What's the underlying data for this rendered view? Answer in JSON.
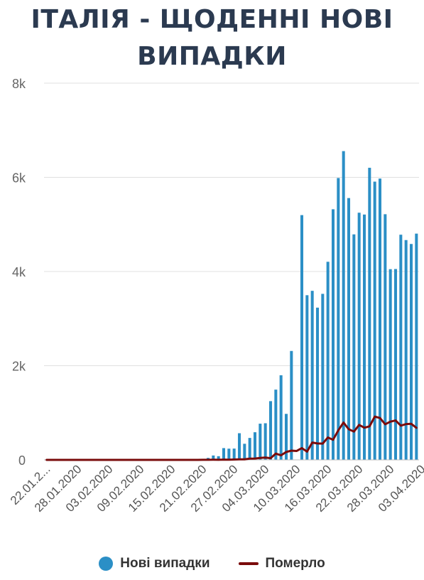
{
  "title_line1": "ІТАЛІЯ - ЩОДЕННІ НОВІ",
  "title_line2": "ВИПАДКИ",
  "colors": {
    "bars": "#2b8fc6",
    "line": "#7a0b0b",
    "grid": "#e0e0e0",
    "title": "#2b3a50"
  },
  "chart_data": {
    "type": "bar",
    "title": "ІТАЛІЯ - ЩОДЕННІ НОВІ ВИПАДКИ",
    "ylim": [
      0,
      8000
    ],
    "yticks": [
      0,
      2000,
      4000,
      6000,
      8000
    ],
    "ytick_labels": [
      "0",
      "2k",
      "4k",
      "6k",
      "8k"
    ],
    "xtick_labels": [
      {
        "index": 0,
        "label": "22.01.2..."
      },
      {
        "index": 6,
        "label": "28.01.2020"
      },
      {
        "index": 12,
        "label": "03.02.2020"
      },
      {
        "index": 18,
        "label": "09.02.2020"
      },
      {
        "index": 24,
        "label": "15.02.2020"
      },
      {
        "index": 30,
        "label": "21.02.2020"
      },
      {
        "index": 36,
        "label": "27.02.2020"
      },
      {
        "index": 42,
        "label": "04.03.2020"
      },
      {
        "index": 48,
        "label": "10.03.2020"
      },
      {
        "index": 54,
        "label": "16.03.2020"
      },
      {
        "index": 60,
        "label": "22.03.2020"
      },
      {
        "index": 66,
        "label": "28.03.2020"
      },
      {
        "index": 72,
        "label": "03.04.2020"
      }
    ],
    "legend_position": "bottom",
    "grid": true,
    "series": [
      {
        "name": "Нові випадки",
        "kind": "bar",
        "values": [
          0,
          0,
          0,
          0,
          0,
          0,
          0,
          0,
          0,
          2,
          0,
          0,
          0,
          0,
          0,
          0,
          0,
          1,
          0,
          0,
          0,
          0,
          0,
          0,
          0,
          0,
          0,
          0,
          0,
          0,
          17,
          42,
          93,
          78,
          250,
          238,
          240,
          566,
          342,
          466,
          587,
          769,
          778,
          1247,
          1492,
          1797,
          977,
          2313,
          0,
          5198,
          3497,
          3590,
          3233,
          3526,
          4207,
          5322,
          5986,
          6557,
          5560,
          4789,
          5249,
          5210,
          6203,
          5909,
          5974,
          5217,
          4050,
          4053,
          4782,
          4668,
          4585,
          4805
        ]
      },
      {
        "name": "Померло",
        "kind": "line",
        "values": [
          0,
          0,
          0,
          0,
          0,
          0,
          0,
          0,
          0,
          0,
          0,
          0,
          0,
          0,
          0,
          0,
          0,
          0,
          0,
          0,
          0,
          0,
          0,
          0,
          0,
          0,
          0,
          0,
          0,
          0,
          1,
          2,
          3,
          2,
          5,
          4,
          8,
          12,
          11,
          27,
          28,
          41,
          49,
          36,
          133,
          97,
          168,
          196,
          189,
          250,
          175,
          368,
          349,
          345,
          475,
          427,
          627,
          793,
          651,
          601,
          743,
          683,
          712,
          919,
          889,
          756,
          812,
          837,
          727,
          760,
          766,
          681
        ]
      }
    ]
  }
}
